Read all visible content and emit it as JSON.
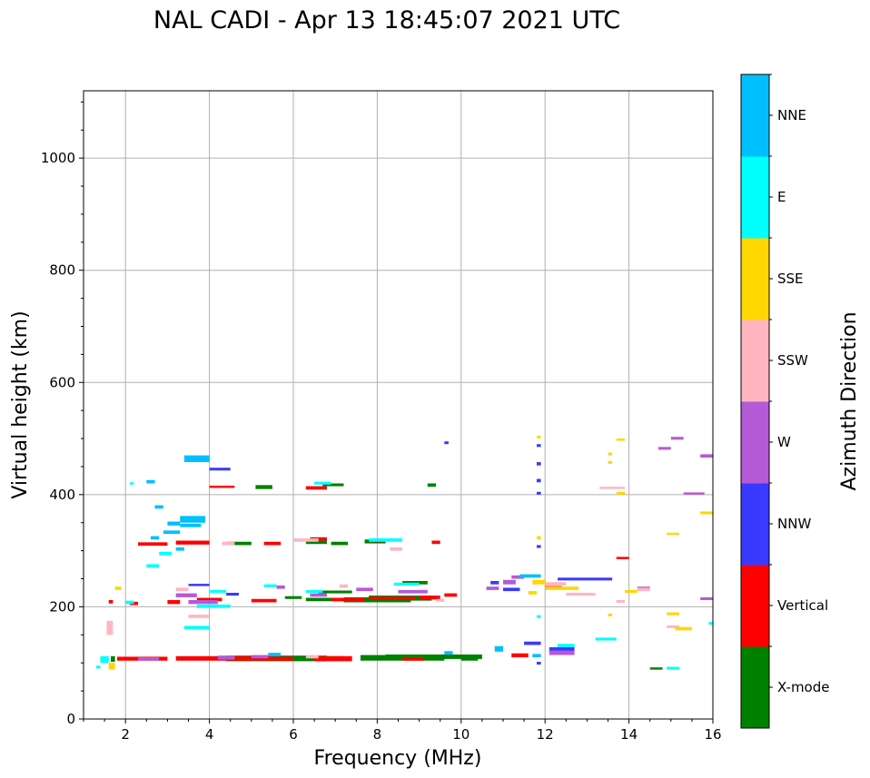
{
  "chart_data": {
    "type": "scatter",
    "title": "NAL CADI - Apr 13 18:45:07 2021 UTC",
    "xlabel": "Frequency (MHz)",
    "ylabel": "Virtual height (km)",
    "xlim": [
      1,
      16
    ],
    "ylim": [
      0,
      1120
    ],
    "xticks": [
      2,
      4,
      6,
      8,
      10,
      12,
      14,
      16
    ],
    "yticks": [
      0,
      200,
      400,
      600,
      800,
      1000
    ],
    "grid": true,
    "colorbar": {
      "label": "Azimuth Direction",
      "categories": [
        {
          "name": "X-mode",
          "color": "#008000"
        },
        {
          "name": "Vertical",
          "color": "#ff0000"
        },
        {
          "name": "NNW",
          "color": "#3a3aff"
        },
        {
          "name": "W",
          "color": "#b55ad6"
        },
        {
          "name": "SSW",
          "color": "#ffb6c1"
        },
        {
          "name": "SSE",
          "color": "#ffd700"
        },
        {
          "name": "E",
          "color": "#00ffff"
        },
        {
          "name": "NNE",
          "color": "#00bfff"
        }
      ]
    },
    "series": [
      {
        "name": "X-mode",
        "points": [
          [
            1.65,
            102,
            1.75,
            112
          ],
          [
            4.4,
            103,
            6.8,
            113
          ],
          [
            6.1,
            105,
            7.2,
            112
          ],
          [
            7.6,
            104,
            9.6,
            114
          ],
          [
            8.2,
            107,
            10.5,
            115
          ],
          [
            10.0,
            104,
            10.4,
            111
          ],
          [
            14.5,
            88,
            14.8,
            92
          ],
          [
            6.3,
            210,
            7.6,
            216
          ],
          [
            7.2,
            208,
            8.8,
            217
          ],
          [
            7.8,
            211,
            9.3,
            220
          ],
          [
            8.6,
            240,
            9.2,
            246
          ],
          [
            6.3,
            312,
            6.8,
            318
          ],
          [
            6.9,
            310,
            7.3,
            316
          ],
          [
            7.7,
            313,
            8.2,
            320
          ],
          [
            4.4,
            310,
            5.0,
            316
          ],
          [
            5.1,
            410,
            5.5,
            417
          ],
          [
            6.7,
            415,
            7.2,
            420
          ],
          [
            9.2,
            414,
            9.4,
            420
          ],
          [
            6.6,
            224,
            7.4,
            229
          ],
          [
            5.8,
            214,
            6.2,
            219
          ]
        ]
      },
      {
        "name": "Vertical",
        "points": [
          [
            1.8,
            104,
            3.0,
            111
          ],
          [
            3.2,
            104,
            5.5,
            112
          ],
          [
            5.5,
            104,
            6.0,
            111
          ],
          [
            6.5,
            103,
            7.4,
            112
          ],
          [
            8.6,
            104,
            9.1,
            110
          ],
          [
            11.2,
            110,
            11.6,
            117
          ],
          [
            2.3,
            309,
            3.0,
            315
          ],
          [
            3.2,
            311,
            4.0,
            318
          ],
          [
            5.3,
            310,
            5.7,
            316
          ],
          [
            6.4,
            318,
            6.8,
            324
          ],
          [
            7.9,
            315,
            8.1,
            322
          ],
          [
            9.3,
            312,
            9.5,
            318
          ],
          [
            6.9,
            210,
            7.7,
            216
          ],
          [
            7.8,
            212,
            8.9,
            218
          ],
          [
            9.0,
            213,
            9.5,
            220
          ],
          [
            9.6,
            218,
            9.9,
            224
          ],
          [
            3.0,
            205,
            3.3,
            212
          ],
          [
            3.7,
            210,
            4.3,
            216
          ],
          [
            5.0,
            208,
            5.6,
            214
          ],
          [
            6.3,
            409,
            6.8,
            415
          ],
          [
            4.0,
            412,
            4.6,
            416
          ],
          [
            12.0,
            232,
            12.4,
            237
          ],
          [
            13.7,
            285,
            14.0,
            289
          ],
          [
            2.1,
            203,
            2.3,
            209
          ],
          [
            1.6,
            206,
            1.7,
            212
          ]
        ]
      },
      {
        "name": "NNW",
        "points": [
          [
            3.5,
            237,
            4.0,
            241
          ],
          [
            4.0,
            443,
            4.5,
            448
          ],
          [
            11.8,
            400,
            11.9,
            405
          ],
          [
            11.8,
            452,
            11.9,
            458
          ],
          [
            11.8,
            485,
            11.9,
            490
          ],
          [
            11.8,
            305,
            11.9,
            310
          ],
          [
            12.3,
            247,
            13.6,
            252
          ],
          [
            12.1,
            120,
            12.7,
            128
          ],
          [
            11.8,
            97,
            11.9,
            102
          ],
          [
            4.4,
            220,
            4.7,
            225
          ],
          [
            9.6,
            490,
            9.7,
            495
          ],
          [
            10.7,
            240,
            10.9,
            246
          ],
          [
            11.0,
            228,
            11.4,
            234
          ],
          [
            11.5,
            132,
            11.9,
            138
          ],
          [
            11.8,
            422,
            11.9,
            428
          ]
        ]
      },
      {
        "name": "W",
        "points": [
          [
            2.3,
            104,
            2.8,
            110
          ],
          [
            4.2,
            106,
            4.6,
            113
          ],
          [
            5.0,
            108,
            5.4,
            114
          ],
          [
            3.5,
            205,
            4.2,
            212
          ],
          [
            3.2,
            217,
            3.7,
            224
          ],
          [
            5.6,
            232,
            5.8,
            238
          ],
          [
            6.4,
            218,
            6.8,
            224
          ],
          [
            7.5,
            228,
            7.9,
            234
          ],
          [
            8.5,
            224,
            9.2,
            230
          ],
          [
            11.0,
            240,
            11.3,
            248
          ],
          [
            11.2,
            250,
            11.5,
            256
          ],
          [
            12.1,
            114,
            12.7,
            122
          ],
          [
            14.7,
            480,
            15.0,
            485
          ],
          [
            15.0,
            498,
            15.3,
            503
          ],
          [
            15.3,
            400,
            15.8,
            404
          ],
          [
            15.7,
            466,
            16.0,
            472
          ],
          [
            15.7,
            212,
            16.0,
            217
          ],
          [
            10.6,
            230,
            10.9,
            236
          ],
          [
            14.2,
            230,
            14.5,
            236
          ]
        ]
      },
      {
        "name": "SSW",
        "points": [
          [
            1.55,
            150,
            1.7,
            175
          ],
          [
            3.5,
            180,
            4.0,
            186
          ],
          [
            3.2,
            228,
            3.5,
            234
          ],
          [
            4.3,
            310,
            4.6,
            316
          ],
          [
            6.0,
            316,
            6.6,
            322
          ],
          [
            8.3,
            300,
            8.6,
            306
          ],
          [
            12.5,
            220,
            13.2,
            225
          ],
          [
            13.3,
            410,
            13.9,
            414
          ],
          [
            14.2,
            228,
            14.5,
            234
          ],
          [
            14.9,
            162,
            15.2,
            167
          ],
          [
            12.0,
            238,
            12.5,
            244
          ],
          [
            13.7,
            207,
            13.9,
            212
          ],
          [
            7.1,
            234,
            7.3,
            240
          ],
          [
            9.4,
            209,
            9.6,
            214
          ],
          [
            6.3,
            108,
            6.6,
            114
          ]
        ]
      },
      {
        "name": "SSE",
        "points": [
          [
            1.6,
            88,
            1.75,
            100
          ],
          [
            1.75,
            230,
            1.9,
            236
          ],
          [
            11.8,
            320,
            11.9,
            326
          ],
          [
            11.8,
            500,
            11.9,
            505
          ],
          [
            11.7,
            240,
            12.0,
            248
          ],
          [
            12.0,
            230,
            12.8,
            236
          ],
          [
            13.5,
            470,
            13.6,
            475
          ],
          [
            13.7,
            496,
            13.9,
            500
          ],
          [
            13.5,
            455,
            13.6,
            460
          ],
          [
            13.7,
            400,
            13.9,
            405
          ],
          [
            13.5,
            183,
            13.6,
            188
          ],
          [
            13.9,
            225,
            14.2,
            230
          ],
          [
            14.9,
            185,
            15.2,
            190
          ],
          [
            15.1,
            158,
            15.5,
            164
          ],
          [
            15.7,
            365,
            16.0,
            370
          ],
          [
            14.9,
            328,
            15.2,
            332
          ],
          [
            11.6,
            222,
            11.8,
            228
          ]
        ]
      },
      {
        "name": "E",
        "points": [
          [
            1.3,
            90,
            1.4,
            95
          ],
          [
            1.4,
            100,
            1.6,
            112
          ],
          [
            3.4,
            160,
            4.0,
            166
          ],
          [
            3.7,
            198,
            4.5,
            204
          ],
          [
            4.0,
            225,
            4.4,
            230
          ],
          [
            2.0,
            205,
            2.2,
            211
          ],
          [
            2.5,
            270,
            2.8,
            276
          ],
          [
            2.8,
            292,
            3.1,
            298
          ],
          [
            7.8,
            316,
            8.6,
            322
          ],
          [
            8.4,
            238,
            9.0,
            243
          ],
          [
            13.2,
            140,
            13.7,
            145
          ],
          [
            12.3,
            128,
            12.7,
            134
          ],
          [
            15.9,
            168,
            16.0,
            173
          ],
          [
            14.9,
            88,
            15.2,
            93
          ],
          [
            11.8,
            180,
            11.9,
            185
          ],
          [
            6.3,
            225,
            6.7,
            230
          ],
          [
            6.5,
            418,
            6.9,
            423
          ],
          [
            5.3,
            235,
            5.6,
            240
          ],
          [
            2.1,
            418,
            2.2,
            422
          ]
        ]
      },
      {
        "name": "NNE",
        "points": [
          [
            2.9,
            330,
            3.3,
            336
          ],
          [
            3.0,
            345,
            3.3,
            352
          ],
          [
            3.3,
            350,
            3.9,
            362
          ],
          [
            3.3,
            342,
            3.8,
            348
          ],
          [
            3.4,
            458,
            4.0,
            470
          ],
          [
            2.5,
            420,
            2.7,
            426
          ],
          [
            2.7,
            375,
            2.9,
            381
          ],
          [
            3.2,
            300,
            3.4,
            306
          ],
          [
            11.4,
            252,
            11.9,
            258
          ],
          [
            10.8,
            120,
            11.0,
            130
          ],
          [
            9.6,
            115,
            9.8,
            121
          ],
          [
            5.4,
            112,
            5.7,
            118
          ],
          [
            2.6,
            320,
            2.8,
            326
          ],
          [
            11.7,
            110,
            11.9,
            116
          ]
        ]
      }
    ]
  }
}
